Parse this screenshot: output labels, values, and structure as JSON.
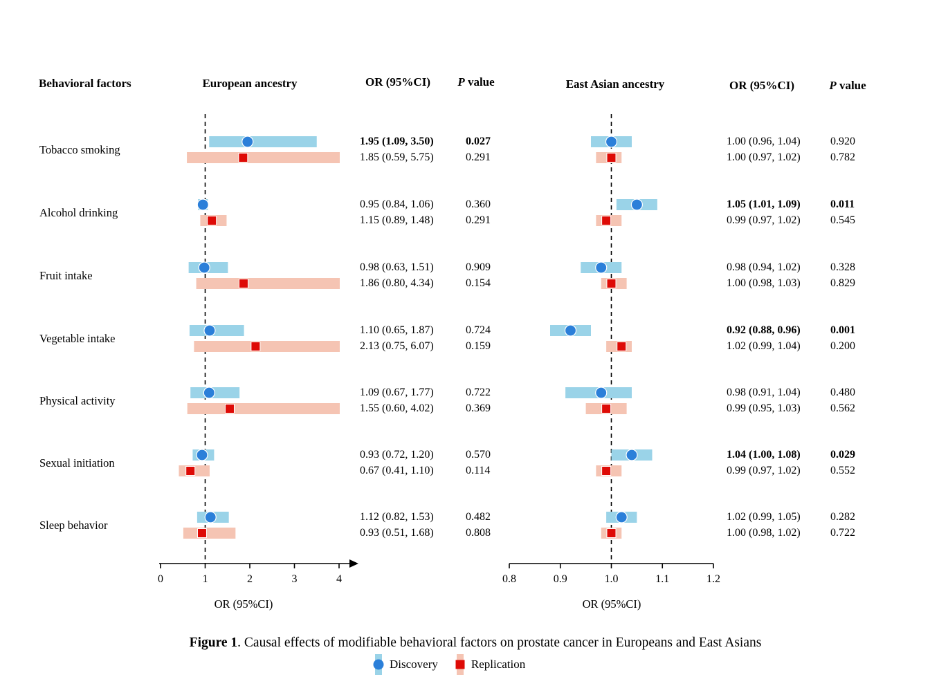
{
  "headers": {
    "factors": "Behavioral factors",
    "panel1": "European ancestry",
    "panel2": "East Asian ancestry",
    "or": "OR (95%CI)",
    "p_italic": "P",
    "p_rest": " value"
  },
  "caption": {
    "prefix": "Figure 1",
    "rest": ". Causal effects of modifiable behavioral factors on prostate cancer in Europeans and East Asians"
  },
  "legend": [
    {
      "label": "Discovery"
    },
    {
      "label": "Replication"
    }
  ],
  "colors": {
    "discovery_marker": "#2B7FD9",
    "discovery_bar": "#9AD3E8",
    "replication_marker": "#DE0B06",
    "replication_bar": "#F5C4B3",
    "axis": "#000000"
  },
  "chart_data": {
    "type": "forest",
    "title": "Figure 1. Causal effects of modifiable behavioral factors on prostate cancer in Europeans and East Asians",
    "series_legend": [
      "Discovery",
      "Replication"
    ],
    "factors": [
      "Tobacco smoking",
      "Alcohol drinking",
      "Fruit intake",
      "Vegetable intake",
      "Physical activity",
      "Sexual initiation",
      "Sleep behavior"
    ],
    "panels": [
      {
        "name": "European ancestry",
        "axis": {
          "min": 0,
          "max": 4,
          "ticks": [
            0,
            1,
            2,
            3,
            4
          ],
          "tick_labels": [
            "0",
            "1",
            "2",
            "3",
            "4"
          ],
          "label": "OR (95%CI)",
          "refline": 1,
          "arrow": true
        },
        "rows": [
          {
            "factor": "Tobacco smoking",
            "discovery": {
              "or": 1.95,
              "lo": 1.09,
              "hi": 3.5,
              "or_text": "1.95 (1.09, 3.50)",
              "p": "0.027",
              "bold": true
            },
            "replication": {
              "or": 1.85,
              "lo": 0.59,
              "hi": 5.75,
              "or_text": "1.85 (0.59, 5.75)",
              "p": "0.291",
              "bold": false
            }
          },
          {
            "factor": "Alcohol drinking",
            "discovery": {
              "or": 0.95,
              "lo": 0.84,
              "hi": 1.06,
              "or_text": "0.95 (0.84, 1.06)",
              "p": "0.360",
              "bold": false
            },
            "replication": {
              "or": 1.15,
              "lo": 0.89,
              "hi": 1.48,
              "or_text": "1.15 (0.89, 1.48)",
              "p": "0.291",
              "bold": false
            }
          },
          {
            "factor": "Fruit intake",
            "discovery": {
              "or": 0.98,
              "lo": 0.63,
              "hi": 1.51,
              "or_text": "0.98 (0.63, 1.51)",
              "p": "0.909",
              "bold": false
            },
            "replication": {
              "or": 1.86,
              "lo": 0.8,
              "hi": 4.34,
              "or_text": "1.86 (0.80, 4.34)",
              "p": "0.154",
              "bold": false
            }
          },
          {
            "factor": "Vegetable intake",
            "discovery": {
              "or": 1.1,
              "lo": 0.65,
              "hi": 1.87,
              "or_text": "1.10 (0.65, 1.87)",
              "p": "0.724",
              "bold": false
            },
            "replication": {
              "or": 2.13,
              "lo": 0.75,
              "hi": 6.07,
              "or_text": "2.13 (0.75, 6.07)",
              "p": "0.159",
              "bold": false
            }
          },
          {
            "factor": "Physical activity",
            "discovery": {
              "or": 1.09,
              "lo": 0.67,
              "hi": 1.77,
              "or_text": "1.09 (0.67, 1.77)",
              "p": "0.722",
              "bold": false
            },
            "replication": {
              "or": 1.55,
              "lo": 0.6,
              "hi": 4.02,
              "or_text": "1.55 (0.60, 4.02)",
              "p": "0.369",
              "bold": false
            }
          },
          {
            "factor": "Sexual initiation",
            "discovery": {
              "or": 0.93,
              "lo": 0.72,
              "hi": 1.2,
              "or_text": "0.93 (0.72, 1.20)",
              "p": "0.570",
              "bold": false
            },
            "replication": {
              "or": 0.67,
              "lo": 0.41,
              "hi": 1.1,
              "or_text": "0.67 (0.41, 1.10)",
              "p": "0.114",
              "bold": false
            }
          },
          {
            "factor": "Sleep behavior",
            "discovery": {
              "or": 1.12,
              "lo": 0.82,
              "hi": 1.53,
              "or_text": "1.12 (0.82, 1.53)",
              "p": "0.482",
              "bold": false
            },
            "replication": {
              "or": 0.93,
              "lo": 0.51,
              "hi": 1.68,
              "or_text": "0.93 (0.51, 1.68)",
              "p": "0.808",
              "bold": false
            }
          }
        ]
      },
      {
        "name": "East Asian ancestry",
        "axis": {
          "min": 0.8,
          "max": 1.2,
          "ticks": [
            0.8,
            0.9,
            1.0,
            1.1,
            1.2
          ],
          "tick_labels": [
            "0.8",
            "0.9",
            "1.0",
            "1.1",
            "1.2"
          ],
          "label": "OR (95%CI)",
          "refline": 1.0,
          "arrow": false
        },
        "rows": [
          {
            "factor": "Tobacco smoking",
            "discovery": {
              "or": 1.0,
              "lo": 0.96,
              "hi": 1.04,
              "or_text": "1.00 (0.96, 1.04)",
              "p": "0.920",
              "bold": false
            },
            "replication": {
              "or": 1.0,
              "lo": 0.97,
              "hi": 1.02,
              "or_text": "1.00 (0.97, 1.02)",
              "p": "0.782",
              "bold": false
            }
          },
          {
            "factor": "Alcohol drinking",
            "discovery": {
              "or": 1.05,
              "lo": 1.01,
              "hi": 1.09,
              "or_text": "1.05 (1.01, 1.09)",
              "p": "0.011",
              "bold": true
            },
            "replication": {
              "or": 0.99,
              "lo": 0.97,
              "hi": 1.02,
              "or_text": "0.99 (0.97, 1.02)",
              "p": "0.545",
              "bold": false
            }
          },
          {
            "factor": "Fruit intake",
            "discovery": {
              "or": 0.98,
              "lo": 0.94,
              "hi": 1.02,
              "or_text": "0.98 (0.94, 1.02)",
              "p": "0.328",
              "bold": false
            },
            "replication": {
              "or": 1.0,
              "lo": 0.98,
              "hi": 1.03,
              "or_text": "1.00 (0.98, 1.03)",
              "p": "0.829",
              "bold": false
            }
          },
          {
            "factor": "Vegetable intake",
            "discovery": {
              "or": 0.92,
              "lo": 0.88,
              "hi": 0.96,
              "or_text": "0.92 (0.88, 0.96)",
              "p": "0.001",
              "bold": true
            },
            "replication": {
              "or": 1.02,
              "lo": 0.99,
              "hi": 1.04,
              "or_text": "1.02 (0.99, 1.04)",
              "p": "0.200",
              "bold": false
            }
          },
          {
            "factor": "Physical activity",
            "discovery": {
              "or": 0.98,
              "lo": 0.91,
              "hi": 1.04,
              "or_text": "0.98 (0.91, 1.04)",
              "p": "0.480",
              "bold": false
            },
            "replication": {
              "or": 0.99,
              "lo": 0.95,
              "hi": 1.03,
              "or_text": "0.99 (0.95, 1.03)",
              "p": "0.562",
              "bold": false
            }
          },
          {
            "factor": "Sexual initiation",
            "discovery": {
              "or": 1.04,
              "lo": 1.0,
              "hi": 1.08,
              "or_text": "1.04 (1.00, 1.08)",
              "p": "0.029",
              "bold": true
            },
            "replication": {
              "or": 0.99,
              "lo": 0.97,
              "hi": 1.02,
              "or_text": "0.99 (0.97, 1.02)",
              "p": "0.552",
              "bold": false
            }
          },
          {
            "factor": "Sleep behavior",
            "discovery": {
              "or": 1.02,
              "lo": 0.99,
              "hi": 1.05,
              "or_text": "1.02 (0.99, 1.05)",
              "p": "0.282",
              "bold": false
            },
            "replication": {
              "or": 1.0,
              "lo": 0.98,
              "hi": 1.02,
              "or_text": "1.00 (0.98, 1.02)",
              "p": "0.722",
              "bold": false
            }
          }
        ]
      }
    ]
  }
}
